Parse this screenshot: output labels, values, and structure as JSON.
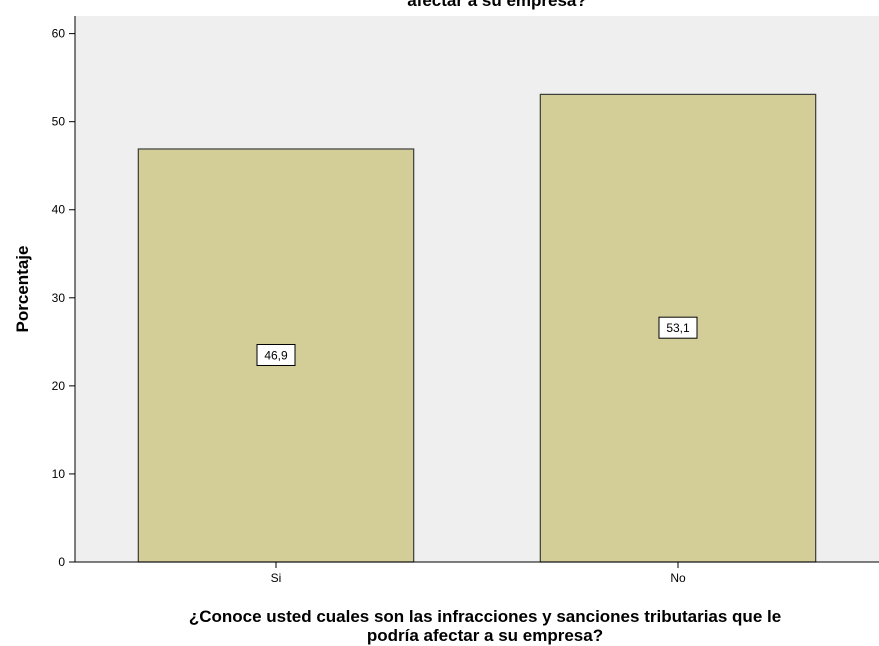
{
  "chart_data": {
    "type": "bar",
    "title": "afectar a su empresa?",
    "categories": [
      "Si",
      "No"
    ],
    "values": [
      46.9,
      53.1
    ],
    "data_labels": [
      "46,9",
      "53,1"
    ],
    "xlabel_lines": [
      "¿Conoce usted cuales son las infracciones y sanciones tributarias que le",
      "podría afectar a su empresa?"
    ],
    "ylabel": "Porcentaje",
    "ylim": [
      0,
      62
    ],
    "yticks": [
      0,
      10,
      20,
      30,
      40,
      50,
      60
    ],
    "grid": false,
    "legend": "none",
    "colors": {
      "plot_background": "#efefef",
      "bar_fill": "#d3ce97",
      "bar_stroke": "#3c3c3c",
      "axis": "#000000"
    }
  }
}
